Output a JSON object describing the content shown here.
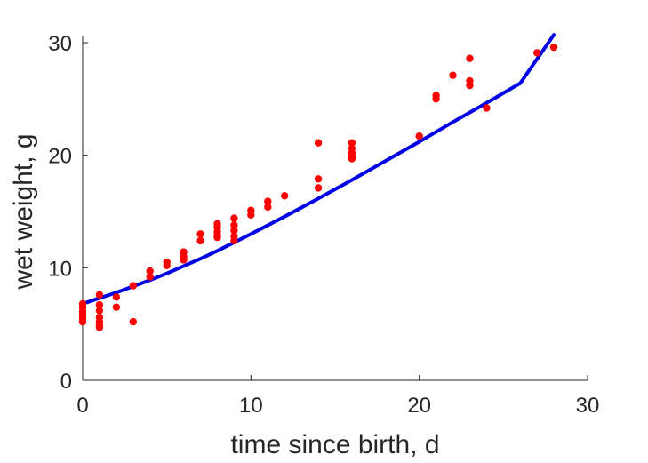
{
  "chart_data": {
    "type": "scatter",
    "xlabel": "time since birth, d",
    "ylabel": "wet weight, g",
    "xlim": [
      0,
      30
    ],
    "ylim": [
      0,
      30
    ],
    "xticks": [
      0,
      10,
      20,
      30
    ],
    "yticks": [
      0,
      10,
      20,
      30
    ],
    "grid": false,
    "colors": {
      "points": "#ff0000",
      "fit_line": "#0000e6",
      "axis": "#262626"
    },
    "series": [
      {
        "type": "scatter",
        "x": [
          0,
          0,
          0,
          0,
          0,
          0,
          1,
          1,
          1,
          1,
          1,
          1,
          1,
          2,
          2,
          3,
          3,
          4,
          4,
          5,
          5,
          6,
          6,
          6,
          7,
          7,
          8,
          8,
          8,
          8,
          8,
          9,
          9,
          9,
          9,
          9,
          10,
          10,
          11,
          11,
          12,
          14,
          14,
          14,
          16,
          16,
          16,
          16,
          16,
          20,
          21,
          21,
          22,
          23,
          23,
          23,
          24,
          27,
          28
        ],
        "y": [
          5.2,
          5.5,
          5.8,
          6.1,
          6.5,
          6.8,
          7.6,
          6.7,
          6.2,
          5.6,
          5.2,
          4.9,
          4.7,
          7.4,
          6.5,
          8.4,
          5.2,
          9.7,
          9.2,
          10.5,
          10.2,
          11.4,
          11.0,
          10.7,
          13.0,
          12.4,
          13.9,
          13.6,
          13.2,
          12.9,
          12.7,
          14.4,
          13.8,
          13.3,
          12.8,
          12.4,
          15.1,
          14.7,
          15.9,
          15.4,
          16.4,
          21.1,
          17.9,
          17.1,
          21.1,
          20.6,
          20.2,
          19.9,
          19.7,
          21.7,
          25.3,
          25.0,
          27.1,
          28.6,
          26.6,
          26.2,
          24.2,
          29.1,
          29.6
        ]
      },
      {
        "type": "line",
        "x": [
          0,
          0.5,
          1,
          1.5,
          2,
          3,
          4,
          5,
          6,
          7,
          8,
          9,
          10,
          12,
          14,
          16,
          18,
          20,
          22,
          24,
          26,
          28
        ],
        "y": [
          6.8,
          7.05,
          7.3,
          7.55,
          7.8,
          8.35,
          8.9,
          9.5,
          10.15,
          10.8,
          11.5,
          12.25,
          13.0,
          14.55,
          16.15,
          17.8,
          19.5,
          21.2,
          22.95,
          24.65,
          26.4,
          30.7
        ]
      }
    ]
  }
}
